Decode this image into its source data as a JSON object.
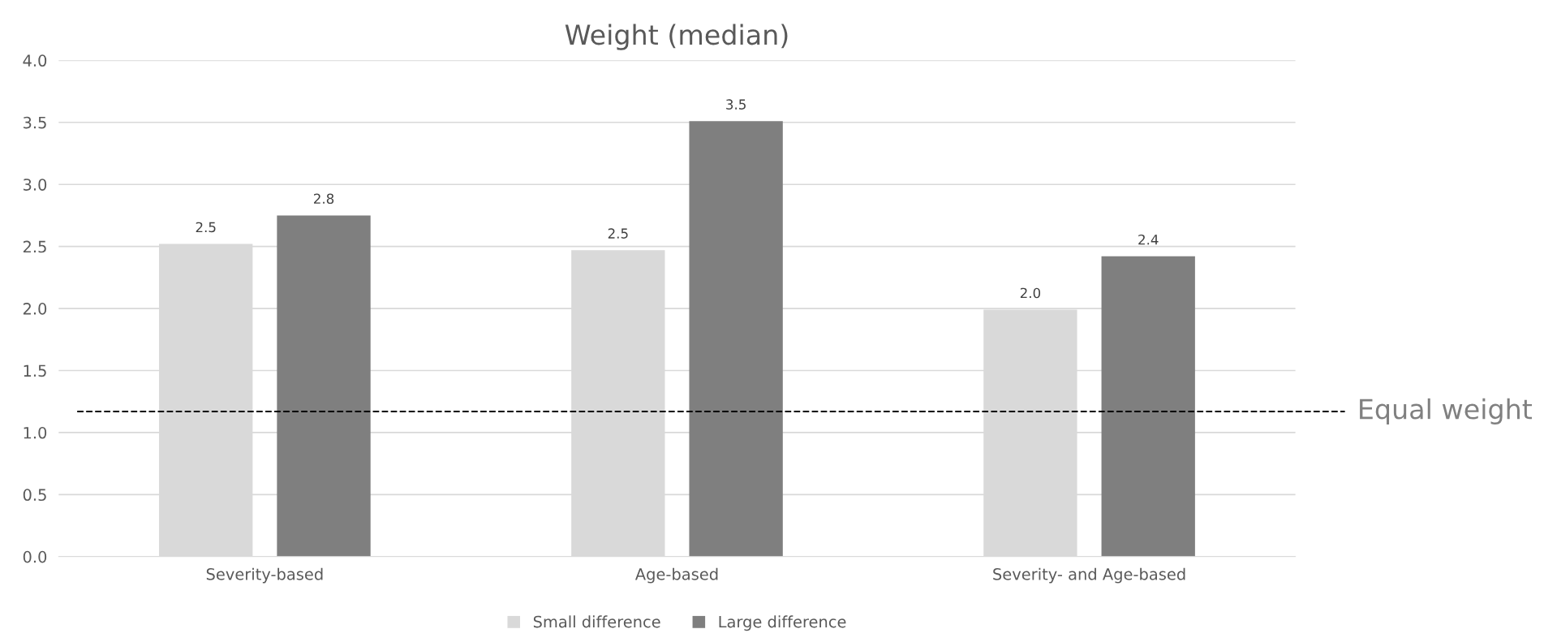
{
  "chart_data": {
    "type": "bar",
    "title": "Weight (median)",
    "categories": [
      "Severity-based",
      "Age-based",
      "Severity- and Age-based"
    ],
    "series": [
      {
        "name": "Small difference",
        "color": "#d9d9d9",
        "values": [
          2.52,
          2.47,
          1.99
        ],
        "value_labels": [
          "2.5",
          "2.5",
          "2.0"
        ]
      },
      {
        "name": "Large difference",
        "color": "#7f7f7f",
        "values": [
          2.75,
          3.51,
          2.42
        ],
        "value_labels": [
          "2.8",
          "3.5",
          "2.4"
        ]
      }
    ],
    "ylim": [
      0,
      4
    ],
    "yticks": [
      {
        "value": 0,
        "label": "0.0"
      },
      {
        "value": 0.5,
        "label": "0.5"
      },
      {
        "value": 1,
        "label": "1.0"
      },
      {
        "value": 1.5,
        "label": "1.5"
      },
      {
        "value": 2,
        "label": "2.0"
      },
      {
        "value": 2.5,
        "label": "2.5"
      },
      {
        "value": 3,
        "label": "3.0"
      },
      {
        "value": 3.5,
        "label": "3.5"
      },
      {
        "value": 4,
        "label": "4.0"
      }
    ],
    "ref_lines": [
      {
        "axis": "y",
        "value": 1.17,
        "label": "Equal weight",
        "color": "#000000",
        "line_style": "dashed"
      }
    ],
    "grid": "y",
    "legend": "bottom"
  }
}
